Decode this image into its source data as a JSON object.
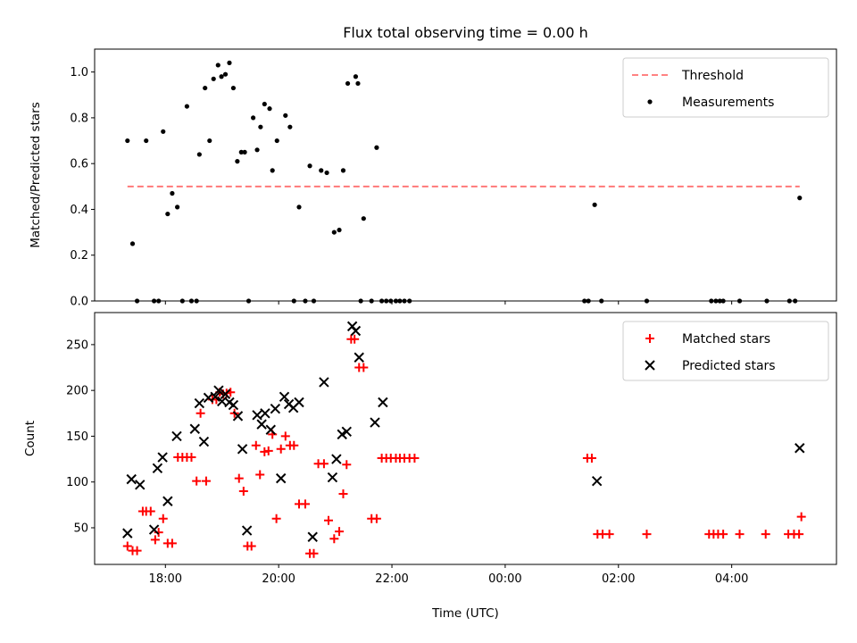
{
  "chart_data": [
    {
      "type": "scatter",
      "title": "Flux total observing time = 0.00 h",
      "xlabel": "",
      "ylabel": "Matched/Predicted stars",
      "x_unit": "hours since 00:00 UTC of first night (values > 24 are next day)",
      "xlim": [
        16.75,
        29.85
      ],
      "ylim": [
        0.0,
        1.1
      ],
      "yticks": [
        0.0,
        0.2,
        0.4,
        0.6,
        0.8,
        1.0
      ],
      "ytick_labels": [
        "0.0",
        "0.2",
        "0.4",
        "0.6",
        "0.8",
        "1.0"
      ],
      "legend": {
        "placement": "top-right",
        "entries": [
          "Threshold",
          "Measurements"
        ]
      },
      "threshold": {
        "name": "Threshold",
        "y": 0.5,
        "x_range": [
          17.33,
          29.2
        ],
        "color": "#ff7070"
      },
      "series": [
        {
          "name": "Measurements",
          "color": "#000000",
          "x": [
            17.33,
            17.42,
            17.5,
            17.66,
            17.8,
            17.88,
            17.96,
            18.04,
            18.12,
            18.21,
            18.3,
            18.38,
            18.46,
            18.55,
            18.6,
            18.7,
            18.78,
            18.85,
            18.93,
            18.99,
            19.06,
            19.13,
            19.2,
            19.27,
            19.34,
            19.4,
            19.47,
            19.55,
            19.62,
            19.68,
            19.75,
            19.84,
            19.89,
            19.97,
            20.12,
            20.2,
            20.27,
            20.36,
            20.47,
            20.55,
            20.62,
            20.75,
            20.85,
            20.98,
            21.07,
            21.14,
            21.22,
            21.36,
            21.4,
            21.45,
            21.5,
            21.64,
            21.73,
            21.82,
            21.9,
            21.98,
            22.07,
            22.14,
            22.22,
            22.31,
            25.4,
            25.47,
            25.58,
            25.7,
            26.5,
            27.64,
            27.72,
            27.79,
            27.85,
            28.14,
            28.62,
            29.02,
            29.12,
            29.2
          ],
          "y": [
            0.7,
            0.25,
            0.0,
            0.7,
            0.0,
            0.0,
            0.74,
            0.38,
            0.47,
            0.41,
            0.0,
            0.85,
            0.0,
            0.0,
            0.64,
            0.93,
            0.7,
            0.97,
            1.03,
            0.98,
            0.99,
            1.04,
            0.93,
            0.61,
            0.65,
            0.65,
            0.0,
            0.8,
            0.66,
            0.76,
            0.86,
            0.84,
            0.57,
            0.7,
            0.81,
            0.76,
            0.0,
            0.41,
            0.0,
            0.59,
            0.0,
            0.57,
            0.56,
            0.3,
            0.31,
            0.57,
            0.95,
            0.98,
            0.95,
            0.0,
            0.36,
            0.0,
            0.67,
            0.0,
            0.0,
            0.0,
            0.0,
            0.0,
            0.0,
            0.0,
            0.0,
            0.0,
            0.42,
            0.0,
            0.0,
            0.0,
            0.0,
            0.0,
            0.0,
            0.0,
            0.0,
            0.0,
            0.0,
            0.45
          ]
        }
      ]
    },
    {
      "type": "scatter",
      "title": "",
      "xlabel": "Time (UTC)",
      "ylabel": "Count",
      "xlim": [
        16.75,
        29.85
      ],
      "ylim": [
        10,
        285
      ],
      "yticks": [
        50,
        100,
        150,
        200,
        250
      ],
      "ytick_labels": [
        "50",
        "100",
        "150",
        "200",
        "250"
      ],
      "xticks": [
        18,
        20,
        22,
        24,
        26,
        28
      ],
      "xtick_labels": [
        "18:00",
        "20:00",
        "22:00",
        "00:00",
        "02:00",
        "04:00"
      ],
      "legend": {
        "placement": "top-right",
        "entries": [
          "Matched stars",
          "Predicted stars"
        ]
      },
      "series": [
        {
          "name": "Matched stars",
          "marker": "plus",
          "color": "#ff0000",
          "x": [
            17.33,
            17.42,
            17.5,
            17.6,
            17.66,
            17.74,
            17.82,
            17.88,
            17.96,
            18.04,
            18.12,
            18.22,
            18.3,
            18.38,
            18.46,
            18.55,
            18.62,
            18.72,
            18.83,
            18.9,
            18.96,
            19.02,
            19.08,
            19.15,
            19.22,
            19.3,
            19.38,
            19.45,
            19.52,
            19.6,
            19.67,
            19.75,
            19.82,
            19.89,
            19.96,
            20.04,
            20.12,
            20.2,
            20.27,
            20.36,
            20.47,
            20.55,
            20.62,
            20.7,
            20.8,
            20.88,
            20.98,
            21.07,
            21.14,
            21.2,
            21.28,
            21.34,
            21.42,
            21.5,
            21.64,
            21.73,
            21.82,
            21.9,
            21.98,
            22.07,
            22.14,
            22.22,
            22.31,
            22.4,
            25.45,
            25.53,
            25.63,
            25.72,
            25.84,
            26.5,
            27.6,
            27.68,
            27.76,
            27.85,
            28.14,
            28.6,
            29.0,
            29.1,
            29.19,
            29.23
          ],
          "y": [
            30,
            25,
            25,
            68,
            68,
            68,
            37,
            45,
            60,
            33,
            33,
            127,
            127,
            127,
            127,
            101,
            175,
            101,
            190,
            190,
            198,
            196,
            197,
            198,
            175,
            104,
            90,
            30,
            30,
            140,
            108,
            133,
            134,
            152,
            60,
            136,
            150,
            140,
            140,
            76,
            76,
            22,
            22,
            120,
            120,
            58,
            38,
            46,
            87,
            119,
            256,
            256,
            225,
            225,
            60,
            60,
            126,
            126,
            126,
            126,
            126,
            126,
            126,
            126,
            126,
            126,
            43,
            43,
            43,
            43,
            43,
            43,
            43,
            43,
            43,
            43,
            43,
            43,
            43,
            62
          ]
        },
        {
          "name": "Predicted stars",
          "marker": "x",
          "color": "#000000",
          "x": [
            17.33,
            17.4,
            17.55,
            17.8,
            17.86,
            17.95,
            18.04,
            18.2,
            18.52,
            18.6,
            18.68,
            18.76,
            18.88,
            18.94,
            19.0,
            19.06,
            19.13,
            19.2,
            19.28,
            19.36,
            19.44,
            19.62,
            19.7,
            19.76,
            19.86,
            19.94,
            20.04,
            20.1,
            20.18,
            20.26,
            20.36,
            20.6,
            20.8,
            20.95,
            21.02,
            21.12,
            21.2,
            21.3,
            21.36,
            21.42,
            21.7,
            21.84,
            25.62,
            29.2
          ],
          "y": [
            44,
            103,
            97,
            48,
            115,
            127,
            79,
            150,
            158,
            186,
            144,
            192,
            193,
            200,
            188,
            196,
            187,
            184,
            172,
            136,
            47,
            173,
            163,
            175,
            157,
            180,
            104,
            193,
            185,
            181,
            187,
            40,
            209,
            105,
            125,
            152,
            155,
            270,
            265,
            236,
            165,
            187,
            101,
            137
          ]
        }
      ]
    }
  ]
}
